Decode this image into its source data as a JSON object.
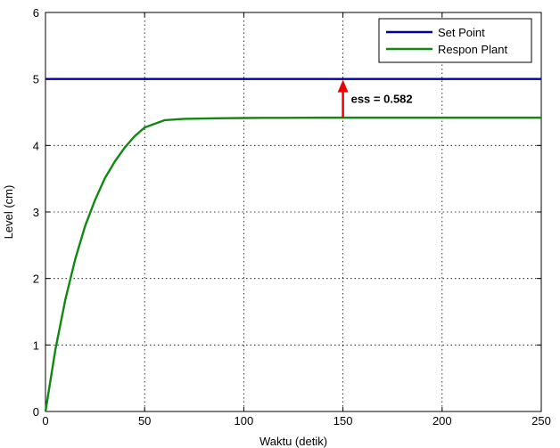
{
  "chart_data": {
    "type": "line",
    "xlabel": "Waktu (detik)",
    "ylabel": "Level (cm)",
    "xlim": [
      0,
      250
    ],
    "ylim": [
      0,
      6
    ],
    "xticks": [
      0,
      50,
      100,
      150,
      200,
      250
    ],
    "yticks": [
      0,
      1,
      2,
      3,
      4,
      5,
      6
    ],
    "grid": true,
    "legend_position": "top-right",
    "series": [
      {
        "name": "Set Point",
        "color": "#0000a0",
        "x": [
          0,
          250
        ],
        "y": [
          5,
          5
        ]
      },
      {
        "name": "Respon Plant",
        "color": "#118811",
        "x": [
          0,
          5,
          10,
          15,
          20,
          25,
          30,
          35,
          40,
          45,
          50,
          60,
          70,
          80,
          90,
          100,
          110,
          120,
          130,
          140,
          150,
          175,
          200,
          225,
          250
        ],
        "y": [
          0,
          0.93,
          1.68,
          2.29,
          2.79,
          3.18,
          3.51,
          3.76,
          3.97,
          4.14,
          4.27,
          4.38,
          4.4,
          4.405,
          4.41,
          4.413,
          4.415,
          4.416,
          4.417,
          4.418,
          4.418,
          4.418,
          4.418,
          4.418,
          4.418
        ]
      }
    ],
    "annotations": [
      {
        "text": "ess = 0.582",
        "arrow_x": 150,
        "arrow_from_y": 4.418,
        "arrow_to_y": 5,
        "arrow_color": "#ee0000"
      }
    ]
  }
}
